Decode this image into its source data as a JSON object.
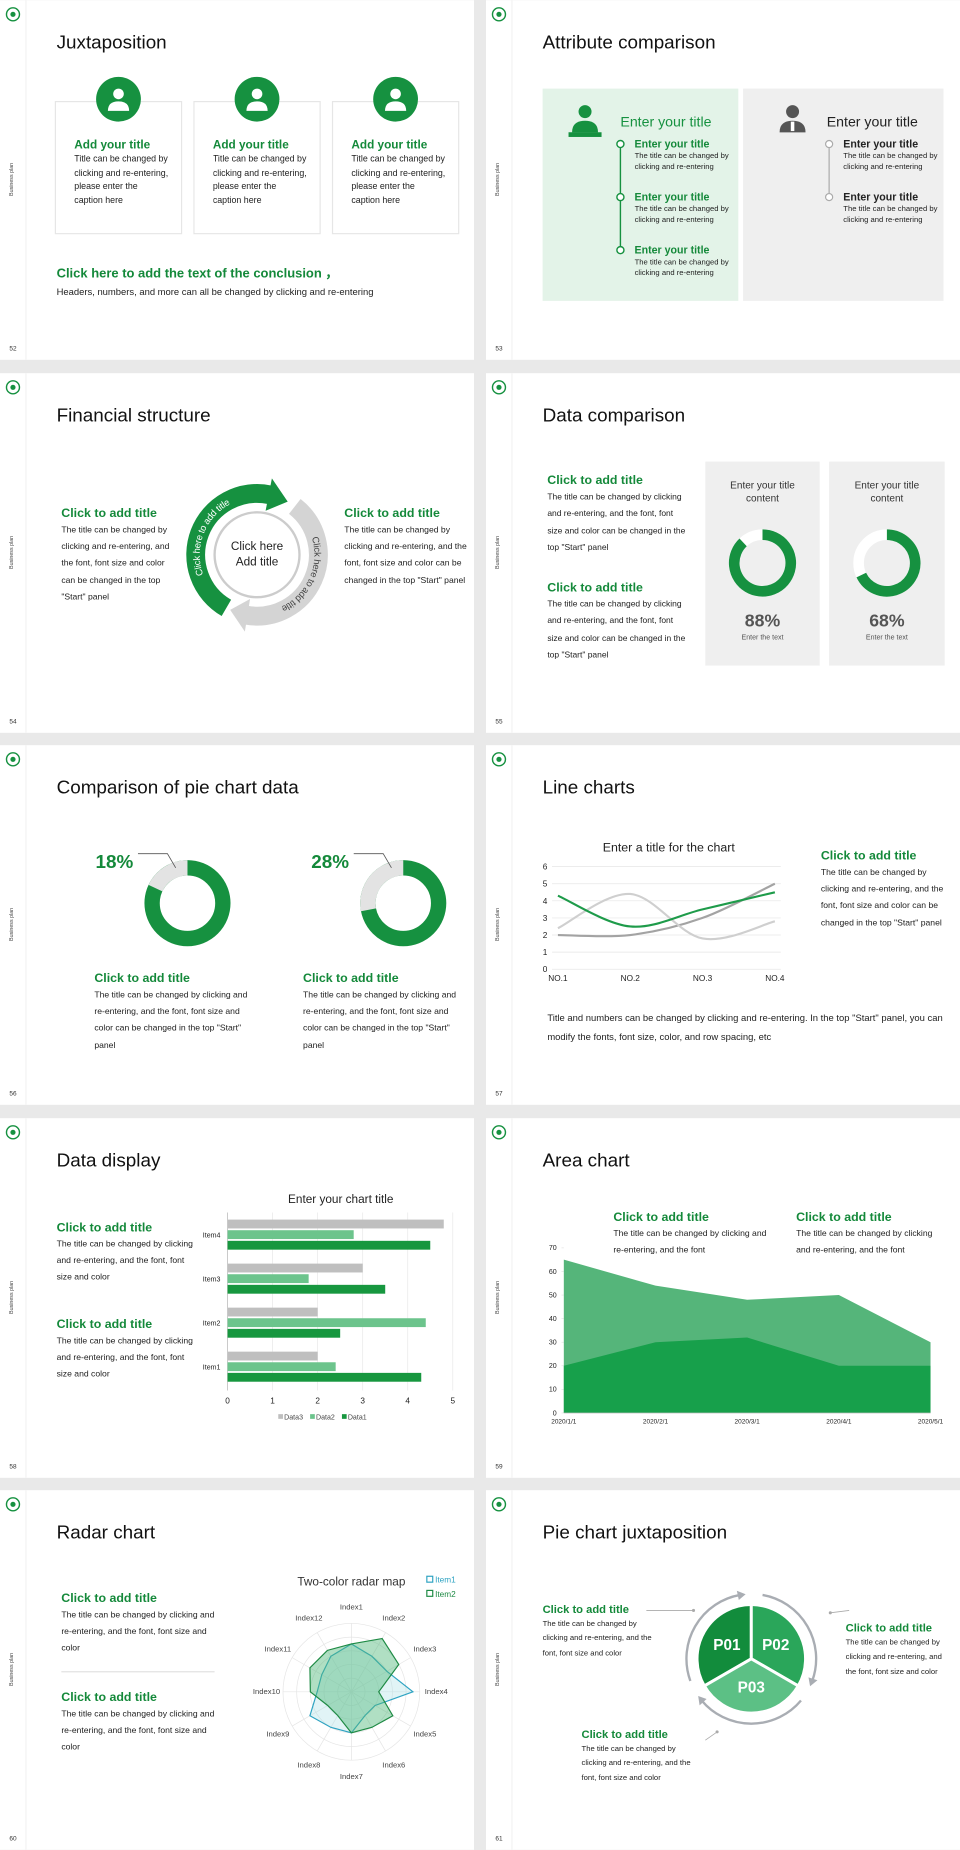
{
  "slides": [
    {
      "number": 52,
      "side": "Business plan",
      "title": "Juxtaposition",
      "cards": [
        {
          "title": "Add your title",
          "text": "Title can be changed by clicking and re-entering, please enter the caption here"
        },
        {
          "title": "Add your title",
          "text": "Title can be changed by clicking and re-entering, please enter the caption here"
        },
        {
          "title": "Add your title",
          "text": "Title can be changed by clicking and re-entering, please enter the caption here"
        }
      ],
      "conclusion": {
        "title": "Click here to add the text of the conclusion ，",
        "text": "Headers, numbers, and more can all be changed by clicking and re-entering"
      }
    },
    {
      "number": 53,
      "side": "Business plan",
      "title": "Attribute comparison",
      "left": {
        "heading": "Enter your title",
        "items": [
          {
            "title": "Enter your title",
            "text": "The title can be changed by clicking and re-entering"
          },
          {
            "title": "Enter your title",
            "text": "The title can be changed by clicking and re-entering"
          },
          {
            "title": "Enter your title",
            "text": "The title can be changed by clicking and re-entering"
          }
        ]
      },
      "right": {
        "heading": "Enter your title",
        "items": [
          {
            "title": "Enter your title",
            "text": "The title can be changed by clicking and re-entering"
          },
          {
            "title": "Enter your title",
            "text": "The title can be changed by clicking and re-entering"
          }
        ]
      }
    },
    {
      "number": 54,
      "side": "Business plan",
      "title": "Financial structure",
      "left": {
        "title": "Click to add title",
        "text": "The title can be changed by clicking and re-entering, and the font, font size and color can be changed in the top \"Start\" panel"
      },
      "right": {
        "title": "Click to add title",
        "text": "The title can be changed by clicking and re-entering, and the font, font size and color can be changed in the top \"Start\" panel"
      },
      "center": [
        "Click here",
        "Add title"
      ],
      "arrows": [
        "Click here to add title",
        "Click here to add title"
      ]
    },
    {
      "number": 55,
      "side": "Business plan",
      "title": "Data comparison",
      "items": [
        {
          "title": "Click to add title",
          "text": "The title can be changed by clicking and re-entering, and the font, font size and color can be changed in the top \"Start\" panel"
        },
        {
          "title": "Click to add title",
          "text": "The title can be changed by clicking and re-entering, and the font, font size and color can be changed in the top \"Start\" panel"
        }
      ],
      "cards": [
        {
          "title": "Enter your title content",
          "value": 88,
          "value_label": "88%",
          "caption": "Enter the text"
        },
        {
          "title": "Enter your title content",
          "value": 68,
          "value_label": "68%",
          "caption": "Enter the text"
        }
      ]
    },
    {
      "number": 56,
      "side": "Business plan",
      "title": "Comparison of pie chart data",
      "donuts": [
        {
          "value": 18,
          "value_label": "18%",
          "title": "Click to add title",
          "text": "The title can be changed by clicking and re-entering, and the font, font size and color can be changed in the top \"Start\" panel"
        },
        {
          "value": 28,
          "value_label": "28%",
          "title": "Click to add title",
          "text": "The title can be changed by clicking and re-entering, and the font, font size and color can be changed in the top \"Start\" panel"
        }
      ]
    },
    {
      "number": 57,
      "side": "Business plan",
      "title": "Line charts",
      "chart": {
        "type": "line",
        "title": "Enter a title for the chart",
        "categories": [
          "NO.1",
          "NO.2",
          "NO.3",
          "NO.4"
        ],
        "ylim": [
          0,
          6
        ],
        "yticks": [
          0,
          1,
          2,
          3,
          4,
          5,
          6
        ],
        "grid": true,
        "series": [
          {
            "color": "#1e9b4a",
            "values": [
              4.3,
              2.5,
              3.5,
              4.5
            ]
          },
          {
            "color": "#cfcfcf",
            "values": [
              2.4,
              4.4,
              1.8,
              2.8
            ]
          },
          {
            "color": "#a3a3a3",
            "values": [
              2,
              2,
              3,
              5
            ]
          }
        ]
      },
      "side_item": {
        "title": "Click to add title",
        "text": "The title can be changed by clicking and re-entering, and the font, font size and color can be changed in the top \"Start\" panel"
      },
      "note": "Title and numbers can be changed by clicking and re-entering. In the top \"Start\" panel, you can modify the fonts, font size, color, and row spacing, etc"
    },
    {
      "number": 58,
      "side": "Business plan",
      "title": "Data display",
      "items": [
        {
          "title": "Click to add title",
          "text": "The title can be changed by clicking and re-entering, and the font, font size and color"
        },
        {
          "title": "Click to add title",
          "text": "The title can be changed by clicking and re-entering, and the font, font size and color"
        }
      ],
      "chart": {
        "type": "bar",
        "orientation": "horizontal",
        "title": "Enter your chart title",
        "categories": [
          "Item1",
          "Item2",
          "Item3",
          "Item4"
        ],
        "xlim": [
          0,
          5
        ],
        "xticks": [
          0,
          1,
          2,
          3,
          4,
          5
        ],
        "grid": true,
        "series": [
          {
            "name": "Data3",
            "color": "#bfbfbf",
            "values": [
              2,
              2,
              3,
              4.8
            ]
          },
          {
            "name": "Data2",
            "color": "#6cc48c",
            "values": [
              2.4,
              4.4,
              1.8,
              2.8
            ]
          },
          {
            "name": "Data1",
            "color": "#17973f",
            "values": [
              4.3,
              2.5,
              3.5,
              4.5
            ]
          }
        ]
      }
    },
    {
      "number": 59,
      "side": "Business plan",
      "title": "Area chart",
      "items": [
        {
          "title": "Click to add title",
          "text": "The title can be changed by clicking and re-entering, and the font"
        },
        {
          "title": "Click to add title",
          "text": "The title can be changed by clicking and re-entering, and the font"
        }
      ],
      "chart": {
        "type": "area",
        "x": [
          "2020/1/1",
          "2020/2/1",
          "2020/3/1",
          "2020/4/1",
          "2020/5/1"
        ],
        "ylim": [
          0,
          70
        ],
        "yticks": [
          0,
          10,
          20,
          30,
          40,
          50,
          60,
          70
        ],
        "grid": false,
        "series": [
          {
            "color": "#55b57a",
            "values": [
              65,
              54,
              48,
              50,
              30
            ]
          },
          {
            "color": "#17a04b",
            "values": [
              20,
              30,
              32,
              20,
              20
            ]
          }
        ]
      }
    },
    {
      "number": 60,
      "side": "Business plan",
      "title": "Radar chart",
      "items": [
        {
          "title": "Click to add title",
          "text": "The title can be changed by clicking and re-entering, and the font, font size and color"
        },
        {
          "title": "Click to add title",
          "text": "The title can be changed by clicking and re-entering, and the font, font size and color"
        }
      ],
      "chart": {
        "type": "radar",
        "title": "Two-color radar map",
        "categories": [
          "Index1",
          "Index2",
          "Index3",
          "Index4",
          "Index5",
          "Index6",
          "Index7",
          "Index8",
          "Index9",
          "Index10",
          "Index11",
          "Index12"
        ],
        "rlim": [
          0,
          5
        ],
        "series": [
          {
            "name": "Item1",
            "color": "#2ea3c2",
            "values": [
              3.5,
              3,
              3,
              4.5,
              2,
              2,
              3,
              3,
              3.5,
              2.5,
              2.5,
              3
            ]
          },
          {
            "name": "Item2",
            "color": "#1e8a44",
            "values": [
              3.5,
              4.5,
              4,
              2,
              3.5,
              3,
              3,
              2,
              2,
              3,
              3.5,
              3.5
            ]
          }
        ]
      }
    },
    {
      "number": 61,
      "side": "Business plan",
      "title": "Pie chart juxtaposition",
      "segments": [
        "P01",
        "P02",
        "P03"
      ],
      "items": [
        {
          "title": "Click to add title",
          "text": "The title can be changed by clicking and re-entering, and the font, font size and color"
        },
        {
          "title": "Click to add title",
          "text": "The title can be changed by clicking and re-entering, and the font, font size and color"
        },
        {
          "title": "Click to add title",
          "text": "The title can be changed by clicking and re-entering, and the font, font size and color"
        }
      ]
    }
  ]
}
